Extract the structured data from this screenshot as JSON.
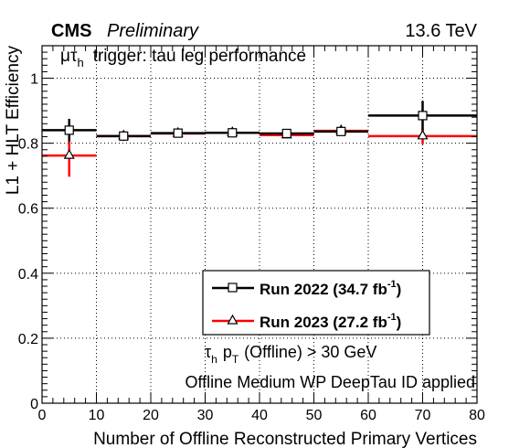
{
  "header": {
    "experiment": "CMS",
    "status": "Preliminary",
    "energy": "13.6 TeV"
  },
  "chart_data": {
    "type": "scatter",
    "style": "error-bar points with horizontal bin widths",
    "annotation_title": "μτ_h trigger: tau leg performance",
    "annotation_title_parts": {
      "mu": "μ",
      "tau": "τ",
      "tau_sub": "h",
      "rest": "trigger: tau leg performance"
    },
    "xlabel": "Number of Offline Reconstructed Primary Vertices",
    "ylabel": "L1 + HLT Efficiency",
    "xlim": [
      0,
      80
    ],
    "ylim": [
      0,
      1.1
    ],
    "x_ticks": [
      0,
      10,
      20,
      30,
      40,
      50,
      60,
      70,
      80
    ],
    "y_ticks": [
      0,
      0.2,
      0.4,
      0.6,
      0.8,
      1
    ],
    "y_tick_labels": [
      "0",
      "0.2",
      "0.4",
      "0.6",
      "0.8",
      "1"
    ],
    "grid": true,
    "legend_position": "bottom-right",
    "series": [
      {
        "name": "Run 2022 (34.7 fb⁻¹)",
        "label_main": "Run 2022 (34.7 fb",
        "label_sup": "-1",
        "label_close": ")",
        "color": "#000000",
        "marker": "open-square",
        "points": [
          {
            "xlo": 0,
            "xhi": 10,
            "x": 5,
            "y": 0.84,
            "err": 0.035
          },
          {
            "xlo": 10,
            "xhi": 20,
            "x": 15,
            "y": 0.822,
            "err": 0.012
          },
          {
            "xlo": 20,
            "xhi": 30,
            "x": 25,
            "y": 0.831,
            "err": 0.008
          },
          {
            "xlo": 30,
            "xhi": 40,
            "x": 35,
            "y": 0.832,
            "err": 0.007
          },
          {
            "xlo": 40,
            "xhi": 50,
            "x": 45,
            "y": 0.83,
            "err": 0.009
          },
          {
            "xlo": 50,
            "xhi": 60,
            "x": 55,
            "y": 0.836,
            "err": 0.012
          },
          {
            "xlo": 60,
            "xhi": 80,
            "x": 70,
            "y": 0.885,
            "err": 0.045
          }
        ]
      },
      {
        "name": "Run 2023 (27.2 fb⁻¹)",
        "label_main": "Run 2023 (27.2 fb",
        "label_sup": "-1",
        "label_close": ")",
        "color": "#ff0000",
        "marker": "open-triangle",
        "points": [
          {
            "xlo": 0,
            "xhi": 10,
            "x": 5,
            "y": 0.762,
            "err": 0.065
          },
          {
            "xlo": 10,
            "xhi": 20,
            "x": 15,
            "y": 0.822,
            "err": 0.015
          },
          {
            "xlo": 20,
            "xhi": 30,
            "x": 25,
            "y": 0.83,
            "err": 0.009
          },
          {
            "xlo": 30,
            "xhi": 40,
            "x": 35,
            "y": 0.832,
            "err": 0.008
          },
          {
            "xlo": 40,
            "xhi": 50,
            "x": 45,
            "y": 0.825,
            "err": 0.01
          },
          {
            "xlo": 50,
            "xhi": 60,
            "x": 55,
            "y": 0.838,
            "err": 0.013
          },
          {
            "xlo": 60,
            "xhi": 80,
            "x": 70,
            "y": 0.822,
            "err": 0.025
          }
        ]
      }
    ],
    "annotations": {
      "cut_line": {
        "tau": "τ",
        "tau_sub": "h",
        "p": "p",
        "p_sub": "T",
        "rest": "(Offline) > 30 GeV"
      },
      "id_line": "Offline Medium WP DeepTau ID applied"
    }
  }
}
